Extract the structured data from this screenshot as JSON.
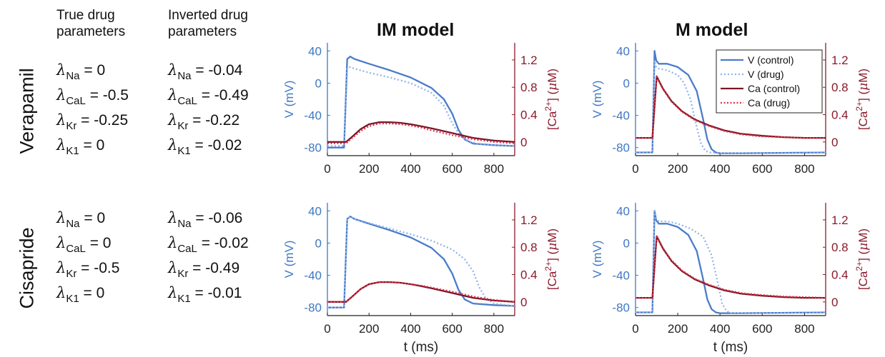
{
  "headers": {
    "true_params": [
      "True drug",
      "parameters"
    ],
    "inverted_params": [
      "Inverted drug",
      "parameters"
    ],
    "col_titles": [
      "IM model",
      "M model"
    ]
  },
  "rows": [
    {
      "label": "Verapamil",
      "true": [
        {
          "sub": "Na",
          "value": "= 0"
        },
        {
          "sub": "CaL",
          "value": "= -0.5"
        },
        {
          "sub": "Kr",
          "value": "= -0.25"
        },
        {
          "sub": "K1",
          "value": "= 0"
        }
      ],
      "inverted": [
        {
          "sub": "Na",
          "value": "= -0.04"
        },
        {
          "sub": "CaL",
          "value": "= -0.49"
        },
        {
          "sub": "Kr",
          "value": "= -0.22"
        },
        {
          "sub": "K1",
          "value": "= -0.02"
        }
      ]
    },
    {
      "label": "Cisapride",
      "true": [
        {
          "sub": "Na",
          "value": "= 0"
        },
        {
          "sub": "CaL",
          "value": "= 0"
        },
        {
          "sub": "Kr",
          "value": "= -0.5"
        },
        {
          "sub": "K1",
          "value": "= 0"
        }
      ],
      "inverted": [
        {
          "sub": "Na",
          "value": "= -0.06"
        },
        {
          "sub": "CaL",
          "value": "= -0.02"
        },
        {
          "sub": "Kr",
          "value": "= -0.49"
        },
        {
          "sub": "K1",
          "value": "= -0.01"
        }
      ]
    }
  ],
  "colors": {
    "voltage": "#4a7cc9",
    "voltage_drug": "#8fb3ec",
    "calcium": "#7a1626",
    "calcium_drug": "#e0304a",
    "axis_v": "#3f78c4",
    "axis_ca": "#8b1a2b"
  },
  "chart_data": [
    {
      "type": "line",
      "model": "IM model",
      "drug": "Verapamil",
      "xlabel": "",
      "ylabel_left": "V (mV)",
      "ylabel_right": "[Ca2+] (μM)",
      "xlim": [
        0,
        900
      ],
      "xticks": [
        0,
        200,
        400,
        600,
        800
      ],
      "ylim_left": [
        -90,
        50
      ],
      "yticks_left": [
        -80,
        -40,
        0,
        40
      ],
      "ylim_right": [
        -0.2,
        1.45
      ],
      "yticks_right": [
        0,
        0.4,
        0.8,
        1.2
      ],
      "legend": null,
      "series": [
        {
          "name": "V (control)",
          "axis": "left",
          "style": "solid",
          "x": [
            0,
            80,
            95,
            110,
            130,
            200,
            300,
            400,
            500,
            560,
            600,
            630,
            660,
            700,
            800,
            900
          ],
          "y": [
            -80,
            -80,
            30,
            33,
            30,
            24,
            16,
            7,
            -6,
            -20,
            -38,
            -58,
            -70,
            -75,
            -77,
            -78
          ]
        },
        {
          "name": "V (drug)",
          "axis": "left",
          "style": "dotted",
          "x": [
            0,
            80,
            95,
            110,
            130,
            200,
            300,
            400,
            500,
            560,
            600,
            640,
            680,
            720,
            800,
            900
          ],
          "y": [
            -78,
            -78,
            18,
            20,
            18,
            13,
            7,
            0,
            -12,
            -28,
            -50,
            -66,
            -72,
            -75,
            -77,
            -78
          ]
        },
        {
          "name": "Ca (control)",
          "axis": "right",
          "style": "solid",
          "x": [
            0,
            90,
            120,
            160,
            200,
            250,
            300,
            350,
            400,
            450,
            500,
            600,
            700,
            800,
            900
          ],
          "y": [
            0.0,
            0.0,
            0.08,
            0.19,
            0.26,
            0.29,
            0.29,
            0.28,
            0.26,
            0.23,
            0.2,
            0.13,
            0.06,
            0.02,
            0.0
          ]
        },
        {
          "name": "Ca (drug)",
          "axis": "right",
          "style": "dotted",
          "x": [
            0,
            90,
            120,
            160,
            200,
            250,
            300,
            350,
            400,
            450,
            500,
            600,
            700,
            800,
            900
          ],
          "y": [
            -0.02,
            -0.02,
            0.06,
            0.16,
            0.23,
            0.27,
            0.27,
            0.26,
            0.24,
            0.21,
            0.17,
            0.1,
            0.04,
            0.0,
            -0.02
          ]
        }
      ]
    },
    {
      "type": "line",
      "model": "M model",
      "drug": "Verapamil",
      "xlabel": "",
      "ylabel_left": "V (mV)",
      "ylabel_right": "[Ca2+] (μM)",
      "xlim": [
        0,
        900
      ],
      "xticks": [
        0,
        200,
        400,
        600,
        800
      ],
      "ylim_left": [
        -90,
        50
      ],
      "yticks_left": [
        -80,
        -40,
        0,
        40
      ],
      "ylim_right": [
        -0.2,
        1.45
      ],
      "yticks_right": [
        0,
        0.4,
        0.8,
        1.2
      ],
      "legend": "top-right",
      "series": [
        {
          "name": "V (control)",
          "axis": "left",
          "style": "solid",
          "x": [
            0,
            80,
            90,
            98,
            110,
            150,
            200,
            250,
            290,
            320,
            340,
            360,
            380,
            400,
            500,
            900
          ],
          "y": [
            -86,
            -86,
            40,
            28,
            24,
            24,
            20,
            10,
            -10,
            -45,
            -70,
            -82,
            -86,
            -87,
            -87,
            -86
          ]
        },
        {
          "name": "V (drug)",
          "axis": "left",
          "style": "dotted",
          "x": [
            0,
            80,
            90,
            98,
            110,
            150,
            200,
            230,
            260,
            290,
            310,
            330,
            350,
            400,
            500,
            900
          ],
          "y": [
            -86,
            -86,
            28,
            20,
            18,
            16,
            10,
            0,
            -20,
            -55,
            -75,
            -84,
            -86,
            -87,
            -87,
            -86
          ]
        },
        {
          "name": "Ca (control)",
          "axis": "right",
          "style": "solid",
          "x": [
            0,
            80,
            100,
            130,
            170,
            220,
            280,
            350,
            420,
            500,
            600,
            700,
            800,
            900
          ],
          "y": [
            0.06,
            0.06,
            0.96,
            0.78,
            0.6,
            0.45,
            0.33,
            0.24,
            0.17,
            0.12,
            0.09,
            0.07,
            0.06,
            0.06
          ]
        },
        {
          "name": "Ca (drug)",
          "axis": "right",
          "style": "dotted",
          "x": [
            0,
            80,
            100,
            130,
            170,
            220,
            280,
            350,
            420,
            500,
            600,
            700,
            800,
            900
          ],
          "y": [
            0.06,
            0.06,
            0.95,
            0.77,
            0.59,
            0.44,
            0.32,
            0.23,
            0.16,
            0.11,
            0.08,
            0.07,
            0.06,
            0.06
          ]
        }
      ]
    },
    {
      "type": "line",
      "model": "IM model",
      "drug": "Cisapride",
      "xlabel": "t (ms)",
      "ylabel_left": "V (mV)",
      "ylabel_right": "[Ca2+] (μM)",
      "xlim": [
        0,
        900
      ],
      "xticks": [
        0,
        200,
        400,
        600,
        800
      ],
      "ylim_left": [
        -90,
        50
      ],
      "yticks_left": [
        -80,
        -40,
        0,
        40
      ],
      "ylim_right": [
        -0.2,
        1.45
      ],
      "yticks_right": [
        0,
        0.4,
        0.8,
        1.2
      ],
      "legend": null,
      "series": [
        {
          "name": "V (control)",
          "axis": "left",
          "style": "solid",
          "x": [
            0,
            80,
            95,
            110,
            130,
            200,
            300,
            400,
            500,
            560,
            600,
            630,
            660,
            700,
            800,
            900
          ],
          "y": [
            -80,
            -80,
            30,
            33,
            30,
            24,
            16,
            7,
            -6,
            -20,
            -38,
            -58,
            -70,
            -75,
            -77,
            -78
          ]
        },
        {
          "name": "V (drug)",
          "axis": "left",
          "style": "dotted",
          "x": [
            0,
            80,
            95,
            110,
            130,
            200,
            300,
            400,
            500,
            600,
            660,
            700,
            730,
            760,
            800,
            900
          ],
          "y": [
            -80,
            -80,
            30,
            33,
            30,
            25,
            18,
            11,
            3,
            -8,
            -20,
            -35,
            -55,
            -68,
            -75,
            -78
          ]
        },
        {
          "name": "Ca (control)",
          "axis": "right",
          "style": "solid",
          "x": [
            0,
            90,
            120,
            160,
            200,
            250,
            300,
            350,
            400,
            450,
            500,
            600,
            700,
            800,
            900
          ],
          "y": [
            0.0,
            0.0,
            0.08,
            0.19,
            0.26,
            0.29,
            0.29,
            0.28,
            0.26,
            0.23,
            0.2,
            0.13,
            0.06,
            0.02,
            0.0
          ]
        },
        {
          "name": "Ca (drug)",
          "axis": "right",
          "style": "dotted",
          "x": [
            0,
            90,
            120,
            160,
            200,
            250,
            300,
            350,
            400,
            450,
            500,
            600,
            700,
            800,
            900
          ],
          "y": [
            0.0,
            0.0,
            0.08,
            0.19,
            0.26,
            0.29,
            0.29,
            0.28,
            0.26,
            0.24,
            0.21,
            0.15,
            0.08,
            0.03,
            0.0
          ]
        }
      ]
    },
    {
      "type": "line",
      "model": "M model",
      "drug": "Cisapride",
      "xlabel": "t (ms)",
      "ylabel_left": "V (mV)",
      "ylabel_right": "[Ca2+] (μM)",
      "xlim": [
        0,
        900
      ],
      "xticks": [
        0,
        200,
        400,
        600,
        800
      ],
      "ylim_left": [
        -90,
        50
      ],
      "yticks_left": [
        -80,
        -40,
        0,
        40
      ],
      "ylim_right": [
        -0.2,
        1.45
      ],
      "yticks_right": [
        0,
        0.4,
        0.8,
        1.2
      ],
      "legend": null,
      "series": [
        {
          "name": "V (control)",
          "axis": "left",
          "style": "solid",
          "x": [
            0,
            80,
            90,
            98,
            110,
            150,
            200,
            250,
            290,
            320,
            340,
            360,
            380,
            400,
            500,
            900
          ],
          "y": [
            -86,
            -86,
            40,
            28,
            24,
            24,
            20,
            10,
            -10,
            -45,
            -70,
            -82,
            -86,
            -87,
            -87,
            -86
          ]
        },
        {
          "name": "V (drug)",
          "axis": "left",
          "style": "dotted",
          "x": [
            0,
            80,
            90,
            98,
            110,
            150,
            200,
            260,
            320,
            360,
            390,
            410,
            430,
            450,
            500,
            900
          ],
          "y": [
            -86,
            -86,
            42,
            30,
            27,
            27,
            24,
            18,
            8,
            -15,
            -50,
            -75,
            -84,
            -87,
            -87,
            -86
          ]
        },
        {
          "name": "Ca (control)",
          "axis": "right",
          "style": "solid",
          "x": [
            0,
            80,
            100,
            130,
            170,
            220,
            280,
            350,
            420,
            500,
            600,
            700,
            800,
            900
          ],
          "y": [
            0.06,
            0.06,
            0.96,
            0.78,
            0.6,
            0.45,
            0.33,
            0.24,
            0.17,
            0.12,
            0.09,
            0.07,
            0.06,
            0.06
          ]
        },
        {
          "name": "Ca (drug)",
          "axis": "right",
          "style": "dotted",
          "x": [
            0,
            80,
            100,
            130,
            170,
            220,
            280,
            350,
            420,
            500,
            600,
            700,
            800,
            900
          ],
          "y": [
            0.06,
            0.06,
            0.97,
            0.79,
            0.61,
            0.46,
            0.34,
            0.25,
            0.18,
            0.13,
            0.1,
            0.08,
            0.07,
            0.06
          ]
        }
      ]
    }
  ]
}
